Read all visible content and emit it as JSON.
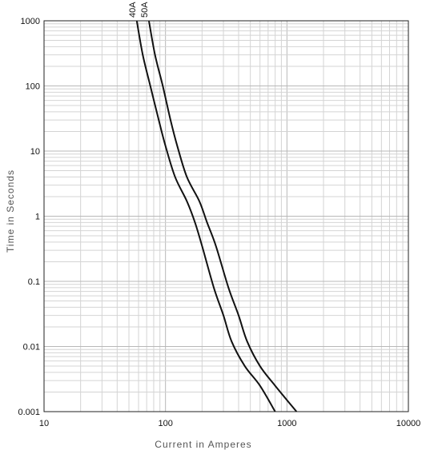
{
  "chart_data": {
    "type": "line",
    "xscale": "log",
    "yscale": "log",
    "xlim": [
      10,
      10000
    ],
    "ylim": [
      0.001,
      1000
    ],
    "xlabel": "Current in Amperes",
    "ylabel": "Time in Seconds",
    "x_ticks": [
      "10",
      "100",
      "1000",
      "10000"
    ],
    "y_ticks": [
      "0.001",
      "0.01",
      "0.1",
      "1",
      "10",
      "100",
      "1000"
    ],
    "grid": true,
    "series": [
      {
        "name": "40A",
        "points": [
          [
            58,
            1000
          ],
          [
            65,
            300
          ],
          [
            75,
            100
          ],
          [
            88,
            30
          ],
          [
            100,
            12
          ],
          [
            120,
            4
          ],
          [
            150,
            1.7
          ],
          [
            175,
            0.8
          ],
          [
            200,
            0.35
          ],
          [
            250,
            0.08
          ],
          [
            300,
            0.03
          ],
          [
            350,
            0.012
          ],
          [
            450,
            0.005
          ],
          [
            600,
            0.0025
          ],
          [
            800,
            0.001
          ]
        ]
      },
      {
        "name": "50A",
        "points": [
          [
            73,
            1000
          ],
          [
            82,
            300
          ],
          [
            95,
            100
          ],
          [
            110,
            30
          ],
          [
            125,
            12
          ],
          [
            150,
            4
          ],
          [
            190,
            1.7
          ],
          [
            220,
            0.8
          ],
          [
            260,
            0.35
          ],
          [
            330,
            0.08
          ],
          [
            400,
            0.03
          ],
          [
            470,
            0.012
          ],
          [
            600,
            0.005
          ],
          [
            800,
            0.0025
          ],
          [
            1200,
            0.001
          ]
        ]
      }
    ],
    "colors": {
      "line": "#111111",
      "grid": "#d4d4d4",
      "frame": "#222222"
    }
  }
}
